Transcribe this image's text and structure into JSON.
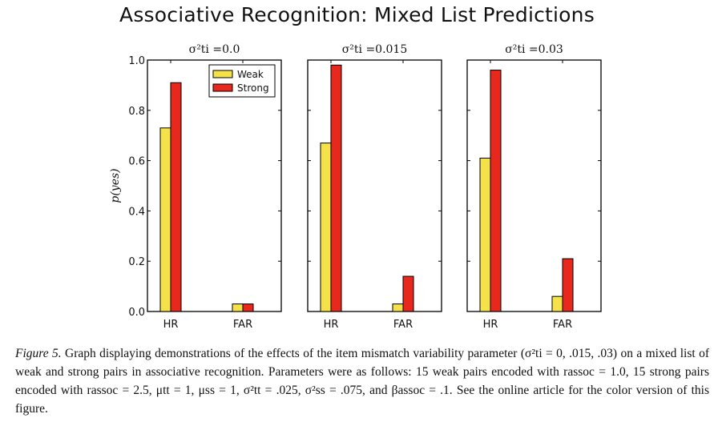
{
  "title": "Associative Recognition: Mixed List Predictions",
  "chart_data": {
    "type": "bar",
    "ylabel": "p(yes)",
    "ylim": [
      0,
      1.0
    ],
    "yticks": [
      "0.0",
      "0.2",
      "0.4",
      "0.6",
      "0.8",
      "1.0"
    ],
    "categories": [
      "HR",
      "FAR"
    ],
    "legend": {
      "placement": "upper-center of first panel",
      "entries": [
        "Weak",
        "Strong"
      ]
    },
    "colors": {
      "Weak": "#f5e14a",
      "Strong": "#e8281c"
    },
    "panels": [
      {
        "subtitle": "σ²ti =0.0",
        "series": [
          {
            "name": "Weak",
            "values": [
              0.73,
              0.03
            ]
          },
          {
            "name": "Strong",
            "values": [
              0.91,
              0.03
            ]
          }
        ]
      },
      {
        "subtitle": "σ²ti =0.015",
        "series": [
          {
            "name": "Weak",
            "values": [
              0.67,
              0.03
            ]
          },
          {
            "name": "Strong",
            "values": [
              0.98,
              0.14
            ]
          }
        ]
      },
      {
        "subtitle": "σ²ti =0.03",
        "series": [
          {
            "name": "Weak",
            "values": [
              0.61,
              0.06
            ]
          },
          {
            "name": "Strong",
            "values": [
              0.96,
              0.21
            ]
          }
        ]
      }
    ]
  },
  "caption": {
    "lead": "Figure 5.",
    "text": "Graph displaying demonstrations of the effects of the item mismatch variability parameter (σ²ti = 0, .015, .03) on a mixed list of weak and strong pairs in associative recognition. Parameters were as follows: 15 weak pairs encoded with rassoc = 1.0, 15 strong pairs encoded with rassoc = 2.5, μtt = 1, μss = 1, σ²tt = .025, σ²ss = .075, and βassoc = .1. See the online article for the color version of this figure."
  }
}
